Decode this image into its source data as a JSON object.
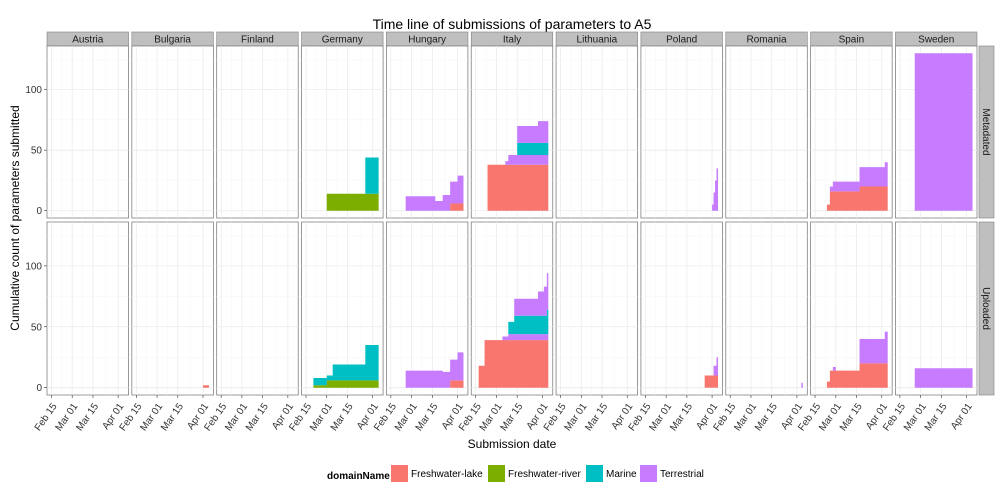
{
  "chart_data": {
    "type": "area",
    "title": "Time line of submissions of parameters to A5",
    "xlabel": "Submission date",
    "ylabel": "Cumulative count of parameters submitted",
    "x_ticks": [
      "Feb 15",
      "Mar 01",
      "Mar 15",
      "Apr 01"
    ],
    "x_tick_days": [
      0,
      14,
      28,
      45
    ],
    "xlim_days": [
      -3,
      52
    ],
    "y_ticks": [
      0,
      50,
      100
    ],
    "ylim": [
      -6,
      136
    ],
    "grid": true,
    "stacked": true,
    "legend": {
      "title": "domainName",
      "position": "bottom",
      "entries": [
        {
          "name": "Freshwater-lake",
          "color": "#F8766D"
        },
        {
          "name": "Freshwater-river",
          "color": "#7CAE00"
        },
        {
          "name": "Marine",
          "color": "#00BFC4"
        },
        {
          "name": "Terrestrial",
          "color": "#C77CFF"
        }
      ]
    },
    "columns": [
      "Austria",
      "Bulgaria",
      "Finland",
      "Germany",
      "Hungary",
      "Italy",
      "Lithuania",
      "Poland",
      "Romania",
      "Spain",
      "Sweden"
    ],
    "rows": [
      "Metadated",
      "Uploaded"
    ],
    "panels": {
      "Metadated": {
        "Germany": {
          "x_start": 14,
          "x_end": 49,
          "layers": [
            {
              "name": "Freshwater-river",
              "steps": [
                [
                  14,
                  14
                ]
              ]
            },
            {
              "name": "Marine",
              "steps": [
                [
                  14,
                  0
                ],
                [
                  40,
                  30
                ]
              ]
            }
          ]
        },
        "Hungary": {
          "x_start": 10,
          "x_end": 49,
          "layers": [
            {
              "name": "Freshwater-lake",
              "steps": [
                [
                  10,
                  0
                ],
                [
                  40,
                  6
                ]
              ]
            },
            {
              "name": "Terrestrial",
              "steps": [
                [
                  10,
                  12
                ],
                [
                  30,
                  8
                ],
                [
                  35,
                  13
                ],
                [
                  40,
                  18
                ],
                [
                  45,
                  23
                ]
              ]
            }
          ]
        },
        "Italy": {
          "x_start": 8,
          "x_end": 49,
          "layers": [
            {
              "name": "Freshwater-lake",
              "steps": [
                [
                  8,
                  38
                ]
              ]
            },
            {
              "name": "Terrestrial",
              "steps": [
                [
                  8,
                  0
                ],
                [
                  20,
                  3
                ],
                [
                  22,
                  8
                ]
              ]
            },
            {
              "name": "Marine",
              "steps": [
                [
                  8,
                  0
                ],
                [
                  28,
                  10
                ]
              ]
            },
            {
              "name": "Terrestrial",
              "steps": [
                [
                  8,
                  0
                ],
                [
                  28,
                  14
                ],
                [
                  42,
                  18
                ]
              ]
            }
          ]
        },
        "Poland": {
          "x_start": 45,
          "x_end": 49,
          "layers": [
            {
              "name": "Terrestrial",
              "steps": [
                [
                  45,
                  5
                ],
                [
                  46,
                  15
                ],
                [
                  47,
                  25
                ],
                [
                  48,
                  35
                ]
              ]
            }
          ]
        },
        "Spain": {
          "x_start": 8,
          "x_end": 49,
          "layers": [
            {
              "name": "Freshwater-lake",
              "steps": [
                [
                  8,
                  5
                ],
                [
                  10,
                  16
                ],
                [
                  30,
                  20
                ]
              ]
            },
            {
              "name": "Terrestrial",
              "steps": [
                [
                  8,
                  0
                ],
                [
                  10,
                  4
                ],
                [
                  12,
                  8
                ],
                [
                  30,
                  16
                ],
                [
                  47,
                  20
                ]
              ]
            }
          ]
        },
        "Sweden": {
          "x_start": 10,
          "x_end": 49,
          "layers": [
            {
              "name": "Terrestrial",
              "steps": [
                [
                  10,
                  130
                ]
              ]
            }
          ]
        }
      },
      "Uploaded": {
        "Bulgaria": {
          "x_start": 45,
          "x_end": 49,
          "layers": [
            {
              "name": "Freshwater-lake",
              "steps": [
                [
                  45,
                  2
                ]
              ]
            }
          ]
        },
        "Germany": {
          "x_start": 5,
          "x_end": 49,
          "layers": [
            {
              "name": "Freshwater-river",
              "steps": [
                [
                  5,
                  2
                ],
                [
                  14,
                  6
                ]
              ]
            },
            {
              "name": "Marine",
              "steps": [
                [
                  5,
                  6
                ],
                [
                  14,
                  4
                ],
                [
                  18,
                  13
                ],
                [
                  40,
                  29
                ]
              ]
            }
          ]
        },
        "Hungary": {
          "x_start": 10,
          "x_end": 49,
          "layers": [
            {
              "name": "Freshwater-lake",
              "steps": [
                [
                  10,
                  0
                ],
                [
                  40,
                  6
                ]
              ]
            },
            {
              "name": "Terrestrial",
              "steps": [
                [
                  10,
                  14
                ],
                [
                  35,
                  13
                ],
                [
                  40,
                  17
                ],
                [
                  45,
                  23
                ]
              ]
            }
          ]
        },
        "Italy": {
          "x_start": 2,
          "x_end": 49,
          "layers": [
            {
              "name": "Freshwater-lake",
              "steps": [
                [
                  2,
                  18
                ],
                [
                  6,
                  39
                ]
              ]
            },
            {
              "name": "Terrestrial",
              "steps": [
                [
                  2,
                  0
                ],
                [
                  18,
                  3
                ],
                [
                  22,
                  5
                ]
              ]
            },
            {
              "name": "Marine",
              "steps": [
                [
                  2,
                  0
                ],
                [
                  22,
                  10
                ],
                [
                  26,
                  15
                ],
                [
                  48,
                  20
                ],
                [
                  49,
                  28
                ]
              ]
            },
            {
              "name": "Terrestrial",
              "steps": [
                [
                  2,
                  0
                ],
                [
                  26,
                  14
                ],
                [
                  42,
                  20
                ],
                [
                  46,
                  24
                ],
                [
                  48,
                  30
                ]
              ]
            }
          ]
        },
        "Poland": {
          "x_start": 40,
          "x_end": 49,
          "layers": [
            {
              "name": "Freshwater-lake",
              "steps": [
                [
                  40,
                  10
                ]
              ]
            },
            {
              "name": "Terrestrial",
              "steps": [
                [
                  40,
                  0
                ],
                [
                  46,
                  8
                ],
                [
                  48,
                  15
                ]
              ]
            }
          ]
        },
        "Romania": {
          "x_start": 48,
          "x_end": 49,
          "layers": [
            {
              "name": "Terrestrial",
              "steps": [
                [
                  48,
                  4
                ]
              ]
            }
          ]
        },
        "Spain": {
          "x_start": 8,
          "x_end": 49,
          "layers": [
            {
              "name": "Freshwater-lake",
              "steps": [
                [
                  8,
                  5
                ],
                [
                  10,
                  14
                ],
                [
                  30,
                  20
                ]
              ]
            },
            {
              "name": "Terrestrial",
              "steps": [
                [
                  8,
                  0
                ],
                [
                  12,
                  3
                ],
                [
                  14,
                  0
                ],
                [
                  30,
                  20
                ],
                [
                  47,
                  26
                ]
              ]
            }
          ]
        },
        "Sweden": {
          "x_start": 10,
          "x_end": 49,
          "layers": [
            {
              "name": "Terrestrial",
              "steps": [
                [
                  10,
                  16
                ]
              ]
            }
          ]
        }
      }
    }
  }
}
